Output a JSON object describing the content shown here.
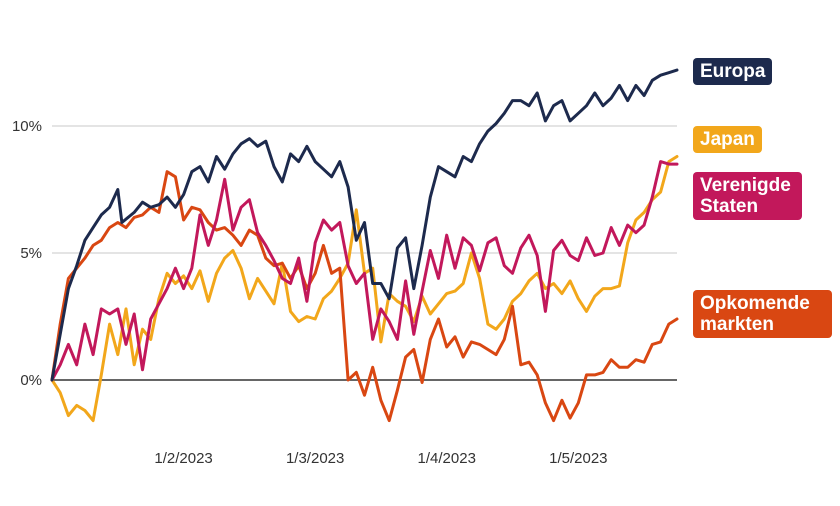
{
  "chart_data": {
    "type": "line",
    "title": "",
    "xlabel": "",
    "ylabel": "",
    "ylim": [
      -2,
      13
    ],
    "y_ticks": [
      {
        "value": 0,
        "label": "0%"
      },
      {
        "value": 5,
        "label": "5%"
      },
      {
        "value": 10,
        "label": "10%"
      }
    ],
    "x_range": [
      0,
      152
    ],
    "x_ticks": [
      {
        "value": 32,
        "label": "1/2/2023"
      },
      {
        "value": 64,
        "label": "1/3/2023"
      },
      {
        "value": 96,
        "label": "1/4/2023"
      },
      {
        "value": 128,
        "label": "1/5/2023"
      }
    ],
    "series": [
      {
        "name": "Europa",
        "label": "Europa",
        "color": "#1d2a4d",
        "points": [
          [
            0,
            0
          ],
          [
            4,
            3.6
          ],
          [
            6,
            4.5
          ],
          [
            8,
            5.5
          ],
          [
            10,
            6
          ],
          [
            12,
            6.5
          ],
          [
            14,
            6.8
          ],
          [
            16,
            7.5
          ],
          [
            17,
            6.2
          ],
          [
            20,
            6.6
          ],
          [
            22,
            7.0
          ],
          [
            24,
            6.8
          ],
          [
            26,
            6.9
          ],
          [
            28,
            7.2
          ],
          [
            30,
            6.8
          ],
          [
            32,
            7.3
          ],
          [
            34,
            8.2
          ],
          [
            36,
            8.4
          ],
          [
            38,
            7.8
          ],
          [
            40,
            8.8
          ],
          [
            42,
            8.3
          ],
          [
            44,
            8.9
          ],
          [
            46,
            9.3
          ],
          [
            48,
            9.5
          ],
          [
            50,
            9.2
          ],
          [
            52,
            9.4
          ],
          [
            54,
            8.4
          ],
          [
            56,
            7.8
          ],
          [
            58,
            8.9
          ],
          [
            60,
            8.6
          ],
          [
            62,
            9.2
          ],
          [
            64,
            8.6
          ],
          [
            66,
            8.3
          ],
          [
            68,
            8.0
          ],
          [
            70,
            8.6
          ],
          [
            72,
            7.6
          ],
          [
            74,
            5.5
          ],
          [
            76,
            6.2
          ],
          [
            78,
            3.8
          ],
          [
            80,
            3.8
          ],
          [
            82,
            3.2
          ],
          [
            84,
            5.2
          ],
          [
            86,
            5.6
          ],
          [
            88,
            3.6
          ],
          [
            90,
            5.3
          ],
          [
            92,
            7.2
          ],
          [
            94,
            8.4
          ],
          [
            96,
            8.2
          ],
          [
            98,
            8.0
          ],
          [
            100,
            8.8
          ],
          [
            102,
            8.6
          ],
          [
            104,
            9.3
          ],
          [
            106,
            9.8
          ],
          [
            108,
            10.1
          ],
          [
            110,
            10.5
          ],
          [
            112,
            11.0
          ],
          [
            114,
            11.0
          ],
          [
            116,
            10.8
          ],
          [
            118,
            11.3
          ],
          [
            120,
            10.2
          ],
          [
            122,
            10.8
          ],
          [
            124,
            11.0
          ],
          [
            126,
            10.2
          ],
          [
            128,
            10.5
          ],
          [
            130,
            10.8
          ],
          [
            132,
            11.3
          ],
          [
            134,
            10.8
          ],
          [
            136,
            11.1
          ],
          [
            138,
            11.6
          ],
          [
            140,
            11.0
          ],
          [
            142,
            11.6
          ],
          [
            144,
            11.2
          ],
          [
            146,
            11.8
          ],
          [
            148,
            12.0
          ],
          [
            150,
            12.1
          ],
          [
            152,
            12.2
          ]
        ]
      },
      {
        "name": "Japan",
        "label": "Japan",
        "color": "#f2a71b",
        "points": [
          [
            0,
            0
          ],
          [
            2,
            -0.5
          ],
          [
            4,
            -1.4
          ],
          [
            6,
            -1.0
          ],
          [
            8,
            -1.2
          ],
          [
            10,
            -1.6
          ],
          [
            12,
            0.2
          ],
          [
            14,
            2.2
          ],
          [
            16,
            1.0
          ],
          [
            18,
            2.8
          ],
          [
            20,
            0.6
          ],
          [
            22,
            2.0
          ],
          [
            24,
            1.6
          ],
          [
            26,
            3.2
          ],
          [
            28,
            4.2
          ],
          [
            30,
            3.8
          ],
          [
            32,
            4.1
          ],
          [
            34,
            3.6
          ],
          [
            36,
            4.3
          ],
          [
            38,
            3.1
          ],
          [
            40,
            4.2
          ],
          [
            42,
            4.8
          ],
          [
            44,
            5.1
          ],
          [
            46,
            4.4
          ],
          [
            48,
            3.2
          ],
          [
            50,
            4.0
          ],
          [
            52,
            3.5
          ],
          [
            54,
            3.0
          ],
          [
            56,
            4.6
          ],
          [
            58,
            2.7
          ],
          [
            60,
            2.3
          ],
          [
            62,
            2.5
          ],
          [
            64,
            2.4
          ],
          [
            66,
            3.2
          ],
          [
            68,
            3.5
          ],
          [
            70,
            4.0
          ],
          [
            72,
            4.6
          ],
          [
            74,
            6.7
          ],
          [
            76,
            4.2
          ],
          [
            78,
            4.4
          ],
          [
            80,
            1.5
          ],
          [
            82,
            3.4
          ],
          [
            84,
            3.1
          ],
          [
            86,
            2.9
          ],
          [
            88,
            2.3
          ],
          [
            90,
            3.3
          ],
          [
            92,
            2.6
          ],
          [
            94,
            3.0
          ],
          [
            96,
            3.4
          ],
          [
            98,
            3.5
          ],
          [
            100,
            3.8
          ],
          [
            102,
            5.0
          ],
          [
            104,
            4.0
          ],
          [
            106,
            2.2
          ],
          [
            108,
            2.0
          ],
          [
            110,
            2.4
          ],
          [
            112,
            3.1
          ],
          [
            114,
            3.4
          ],
          [
            116,
            3.9
          ],
          [
            118,
            4.2
          ],
          [
            120,
            3.6
          ],
          [
            122,
            3.8
          ],
          [
            124,
            3.4
          ],
          [
            126,
            3.9
          ],
          [
            128,
            3.2
          ],
          [
            130,
            2.7
          ],
          [
            132,
            3.3
          ],
          [
            134,
            3.6
          ],
          [
            136,
            3.6
          ],
          [
            138,
            3.7
          ],
          [
            140,
            5.4
          ],
          [
            142,
            6.3
          ],
          [
            144,
            6.6
          ],
          [
            146,
            7.1
          ],
          [
            148,
            7.4
          ],
          [
            150,
            8.6
          ],
          [
            152,
            8.8
          ]
        ]
      },
      {
        "name": "Verenigde Staten",
        "label": "Verenigde Staten",
        "color": "#c2185b",
        "points": [
          [
            0,
            0
          ],
          [
            2,
            0.6
          ],
          [
            4,
            1.4
          ],
          [
            6,
            0.6
          ],
          [
            8,
            2.2
          ],
          [
            10,
            1.0
          ],
          [
            12,
            2.8
          ],
          [
            14,
            2.6
          ],
          [
            16,
            2.8
          ],
          [
            18,
            1.4
          ],
          [
            20,
            2.6
          ],
          [
            22,
            0.4
          ],
          [
            24,
            2.4
          ],
          [
            26,
            3.0
          ],
          [
            28,
            3.6
          ],
          [
            30,
            4.4
          ],
          [
            32,
            3.6
          ],
          [
            34,
            4.4
          ],
          [
            36,
            6.5
          ],
          [
            38,
            5.3
          ],
          [
            40,
            6.3
          ],
          [
            42,
            7.9
          ],
          [
            44,
            5.9
          ],
          [
            46,
            6.8
          ],
          [
            48,
            7.1
          ],
          [
            50,
            5.8
          ],
          [
            52,
            5.3
          ],
          [
            54,
            4.7
          ],
          [
            56,
            4.0
          ],
          [
            58,
            3.8
          ],
          [
            60,
            4.8
          ],
          [
            62,
            3.1
          ],
          [
            64,
            5.4
          ],
          [
            66,
            6.3
          ],
          [
            68,
            5.9
          ],
          [
            70,
            6.2
          ],
          [
            72,
            4.5
          ],
          [
            74,
            3.8
          ],
          [
            76,
            4.2
          ],
          [
            78,
            1.6
          ],
          [
            80,
            2.8
          ],
          [
            82,
            2.3
          ],
          [
            84,
            1.6
          ],
          [
            86,
            3.9
          ],
          [
            88,
            1.8
          ],
          [
            90,
            3.5
          ],
          [
            92,
            5.1
          ],
          [
            94,
            4.0
          ],
          [
            96,
            5.7
          ],
          [
            98,
            4.4
          ],
          [
            100,
            5.6
          ],
          [
            102,
            5.3
          ],
          [
            104,
            4.3
          ],
          [
            106,
            5.4
          ],
          [
            108,
            5.6
          ],
          [
            110,
            4.5
          ],
          [
            112,
            4.2
          ],
          [
            114,
            5.2
          ],
          [
            116,
            5.7
          ],
          [
            118,
            4.9
          ],
          [
            120,
            2.7
          ],
          [
            122,
            5.1
          ],
          [
            124,
            5.5
          ],
          [
            126,
            4.9
          ],
          [
            128,
            4.7
          ],
          [
            130,
            5.6
          ],
          [
            132,
            4.9
          ],
          [
            134,
            5.0
          ],
          [
            136,
            6.0
          ],
          [
            138,
            5.3
          ],
          [
            140,
            6.1
          ],
          [
            142,
            5.8
          ],
          [
            144,
            6.1
          ],
          [
            146,
            7.2
          ],
          [
            148,
            8.6
          ],
          [
            150,
            8.5
          ],
          [
            152,
            8.5
          ]
        ]
      },
      {
        "name": "Opkomende markten",
        "label": "Opkomende markten",
        "color": "#d94712",
        "points": [
          [
            0,
            0
          ],
          [
            2,
            2.2
          ],
          [
            4,
            4.0
          ],
          [
            6,
            4.4
          ],
          [
            8,
            4.8
          ],
          [
            10,
            5.3
          ],
          [
            12,
            5.5
          ],
          [
            14,
            6.0
          ],
          [
            16,
            6.2
          ],
          [
            18,
            6.0
          ],
          [
            20,
            6.4
          ],
          [
            22,
            6.5
          ],
          [
            24,
            6.8
          ],
          [
            26,
            6.6
          ],
          [
            28,
            8.2
          ],
          [
            30,
            8.0
          ],
          [
            32,
            6.3
          ],
          [
            34,
            6.8
          ],
          [
            36,
            6.7
          ],
          [
            38,
            6.2
          ],
          [
            40,
            5.9
          ],
          [
            42,
            6.0
          ],
          [
            44,
            5.7
          ],
          [
            46,
            5.3
          ],
          [
            48,
            5.9
          ],
          [
            50,
            5.7
          ],
          [
            52,
            4.8
          ],
          [
            54,
            4.5
          ],
          [
            56,
            4.6
          ],
          [
            58,
            4.0
          ],
          [
            60,
            4.5
          ],
          [
            62,
            3.6
          ],
          [
            64,
            4.2
          ],
          [
            66,
            5.3
          ],
          [
            68,
            4.2
          ],
          [
            70,
            4.4
          ],
          [
            72,
            0.0
          ],
          [
            74,
            0.3
          ],
          [
            76,
            -0.6
          ],
          [
            78,
            0.5
          ],
          [
            80,
            -0.8
          ],
          [
            82,
            -1.6
          ],
          [
            84,
            -0.4
          ],
          [
            86,
            0.9
          ],
          [
            88,
            1.2
          ],
          [
            90,
            -0.1
          ],
          [
            92,
            1.6
          ],
          [
            94,
            2.4
          ],
          [
            96,
            1.3
          ],
          [
            98,
            1.7
          ],
          [
            100,
            0.9
          ],
          [
            102,
            1.5
          ],
          [
            104,
            1.4
          ],
          [
            106,
            1.2
          ],
          [
            108,
            1.0
          ],
          [
            110,
            1.6
          ],
          [
            112,
            2.9
          ],
          [
            114,
            0.6
          ],
          [
            116,
            0.7
          ],
          [
            118,
            0.2
          ],
          [
            120,
            -0.9
          ],
          [
            122,
            -1.6
          ],
          [
            124,
            -0.8
          ],
          [
            126,
            -1.5
          ],
          [
            128,
            -0.9
          ],
          [
            130,
            0.2
          ],
          [
            132,
            0.2
          ],
          [
            134,
            0.3
          ],
          [
            136,
            0.8
          ],
          [
            138,
            0.5
          ],
          [
            140,
            0.5
          ],
          [
            142,
            0.8
          ],
          [
            144,
            0.7
          ],
          [
            146,
            1.4
          ],
          [
            148,
            1.5
          ],
          [
            150,
            2.2
          ],
          [
            152,
            2.4
          ]
        ]
      }
    ]
  }
}
